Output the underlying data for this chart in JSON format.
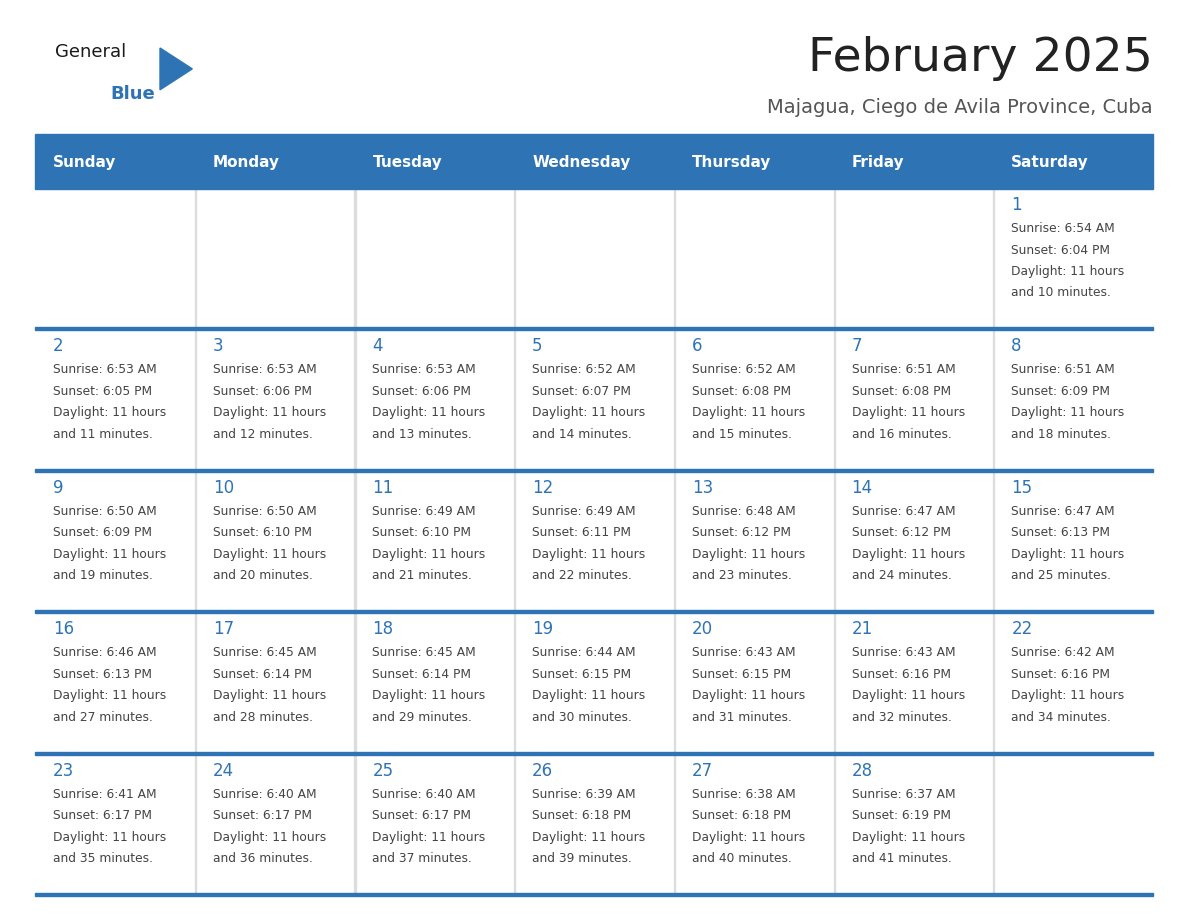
{
  "title": "February 2025",
  "subtitle": "Majagua, Ciego de Avila Province, Cuba",
  "header_bg": "#2E74B5",
  "header_text_color": "#FFFFFF",
  "cell_bg": "#FFFFFF",
  "row_alt_bg": "#F2F2F2",
  "day_names": [
    "Sunday",
    "Monday",
    "Tuesday",
    "Wednesday",
    "Thursday",
    "Friday",
    "Saturday"
  ],
  "title_color": "#222222",
  "subtitle_color": "#555555",
  "day_number_color": "#2E74B5",
  "cell_text_color": "#444444",
  "divider_color": "#2E74B5",
  "logo_general_color": "#1a1a1a",
  "logo_blue_color": "#2E74B5",
  "calendar_data": [
    [
      null,
      null,
      null,
      null,
      null,
      null,
      {
        "day": 1,
        "sunrise": "6:54 AM",
        "sunset": "6:04 PM",
        "daylight_line1": "Daylight: 11 hours",
        "daylight_line2": "and 10 minutes."
      }
    ],
    [
      {
        "day": 2,
        "sunrise": "6:53 AM",
        "sunset": "6:05 PM",
        "daylight_line1": "Daylight: 11 hours",
        "daylight_line2": "and 11 minutes."
      },
      {
        "day": 3,
        "sunrise": "6:53 AM",
        "sunset": "6:06 PM",
        "daylight_line1": "Daylight: 11 hours",
        "daylight_line2": "and 12 minutes."
      },
      {
        "day": 4,
        "sunrise": "6:53 AM",
        "sunset": "6:06 PM",
        "daylight_line1": "Daylight: 11 hours",
        "daylight_line2": "and 13 minutes."
      },
      {
        "day": 5,
        "sunrise": "6:52 AM",
        "sunset": "6:07 PM",
        "daylight_line1": "Daylight: 11 hours",
        "daylight_line2": "and 14 minutes."
      },
      {
        "day": 6,
        "sunrise": "6:52 AM",
        "sunset": "6:08 PM",
        "daylight_line1": "Daylight: 11 hours",
        "daylight_line2": "and 15 minutes."
      },
      {
        "day": 7,
        "sunrise": "6:51 AM",
        "sunset": "6:08 PM",
        "daylight_line1": "Daylight: 11 hours",
        "daylight_line2": "and 16 minutes."
      },
      {
        "day": 8,
        "sunrise": "6:51 AM",
        "sunset": "6:09 PM",
        "daylight_line1": "Daylight: 11 hours",
        "daylight_line2": "and 18 minutes."
      }
    ],
    [
      {
        "day": 9,
        "sunrise": "6:50 AM",
        "sunset": "6:09 PM",
        "daylight_line1": "Daylight: 11 hours",
        "daylight_line2": "and 19 minutes."
      },
      {
        "day": 10,
        "sunrise": "6:50 AM",
        "sunset": "6:10 PM",
        "daylight_line1": "Daylight: 11 hours",
        "daylight_line2": "and 20 minutes."
      },
      {
        "day": 11,
        "sunrise": "6:49 AM",
        "sunset": "6:10 PM",
        "daylight_line1": "Daylight: 11 hours",
        "daylight_line2": "and 21 minutes."
      },
      {
        "day": 12,
        "sunrise": "6:49 AM",
        "sunset": "6:11 PM",
        "daylight_line1": "Daylight: 11 hours",
        "daylight_line2": "and 22 minutes."
      },
      {
        "day": 13,
        "sunrise": "6:48 AM",
        "sunset": "6:12 PM",
        "daylight_line1": "Daylight: 11 hours",
        "daylight_line2": "and 23 minutes."
      },
      {
        "day": 14,
        "sunrise": "6:47 AM",
        "sunset": "6:12 PM",
        "daylight_line1": "Daylight: 11 hours",
        "daylight_line2": "and 24 minutes."
      },
      {
        "day": 15,
        "sunrise": "6:47 AM",
        "sunset": "6:13 PM",
        "daylight_line1": "Daylight: 11 hours",
        "daylight_line2": "and 25 minutes."
      }
    ],
    [
      {
        "day": 16,
        "sunrise": "6:46 AM",
        "sunset": "6:13 PM",
        "daylight_line1": "Daylight: 11 hours",
        "daylight_line2": "and 27 minutes."
      },
      {
        "day": 17,
        "sunrise": "6:45 AM",
        "sunset": "6:14 PM",
        "daylight_line1": "Daylight: 11 hours",
        "daylight_line2": "and 28 minutes."
      },
      {
        "day": 18,
        "sunrise": "6:45 AM",
        "sunset": "6:14 PM",
        "daylight_line1": "Daylight: 11 hours",
        "daylight_line2": "and 29 minutes."
      },
      {
        "day": 19,
        "sunrise": "6:44 AM",
        "sunset": "6:15 PM",
        "daylight_line1": "Daylight: 11 hours",
        "daylight_line2": "and 30 minutes."
      },
      {
        "day": 20,
        "sunrise": "6:43 AM",
        "sunset": "6:15 PM",
        "daylight_line1": "Daylight: 11 hours",
        "daylight_line2": "and 31 minutes."
      },
      {
        "day": 21,
        "sunrise": "6:43 AM",
        "sunset": "6:16 PM",
        "daylight_line1": "Daylight: 11 hours",
        "daylight_line2": "and 32 minutes."
      },
      {
        "day": 22,
        "sunrise": "6:42 AM",
        "sunset": "6:16 PM",
        "daylight_line1": "Daylight: 11 hours",
        "daylight_line2": "and 34 minutes."
      }
    ],
    [
      {
        "day": 23,
        "sunrise": "6:41 AM",
        "sunset": "6:17 PM",
        "daylight_line1": "Daylight: 11 hours",
        "daylight_line2": "and 35 minutes."
      },
      {
        "day": 24,
        "sunrise": "6:40 AM",
        "sunset": "6:17 PM",
        "daylight_line1": "Daylight: 11 hours",
        "daylight_line2": "and 36 minutes."
      },
      {
        "day": 25,
        "sunrise": "6:40 AM",
        "sunset": "6:17 PM",
        "daylight_line1": "Daylight: 11 hours",
        "daylight_line2": "and 37 minutes."
      },
      {
        "day": 26,
        "sunrise": "6:39 AM",
        "sunset": "6:18 PM",
        "daylight_line1": "Daylight: 11 hours",
        "daylight_line2": "and 39 minutes."
      },
      {
        "day": 27,
        "sunrise": "6:38 AM",
        "sunset": "6:18 PM",
        "daylight_line1": "Daylight: 11 hours",
        "daylight_line2": "and 40 minutes."
      },
      {
        "day": 28,
        "sunrise": "6:37 AM",
        "sunset": "6:19 PM",
        "daylight_line1": "Daylight: 11 hours",
        "daylight_line2": "and 41 minutes."
      },
      null
    ]
  ]
}
